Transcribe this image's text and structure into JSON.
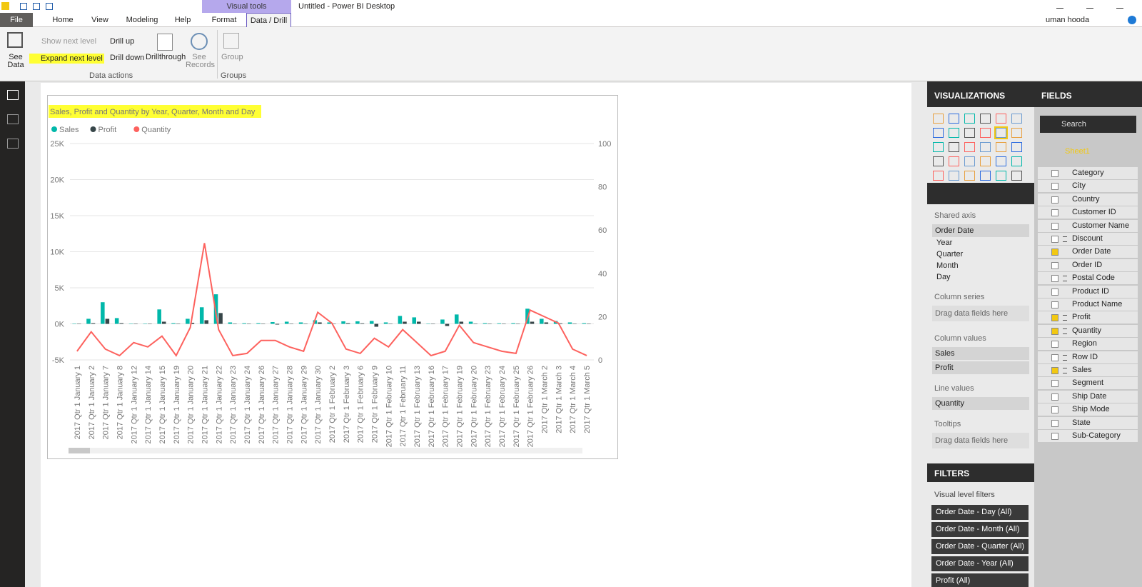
{
  "window": {
    "title": "Untitled - Power BI Desktop",
    "context_tab": "Visual tools",
    "user": "uman hooda"
  },
  "ribbon": {
    "tabs": [
      "File",
      "Home",
      "View",
      "Modeling",
      "Help",
      "Format",
      "Data / Drill"
    ],
    "active_tab": "Data / Drill",
    "see_data": [
      "See",
      "Data"
    ],
    "show_next_level": "Show next level",
    "expand_next_level": "Expand next level",
    "drill_up": "Drill up",
    "drill_down": "Drill down",
    "drillthrough": "Drillthrough",
    "see_records": [
      "See",
      "Records"
    ],
    "group": "Group",
    "group_labels": [
      "Data actions",
      "Groups"
    ]
  },
  "chart_data": {
    "type": "bar_line",
    "title": "Sales, Profit and Quantity by Year, Quarter, Month and Day",
    "categories": [
      "2017 Qtr 1 January 1",
      "2017 Qtr 1 January 2",
      "2017 Qtr 1 January 7",
      "2017 Qtr 1 January 8",
      "2017 Qtr 1 January 12",
      "2017 Qtr 1 January 14",
      "2017 Qtr 1 January 15",
      "2017 Qtr 1 January 19",
      "2017 Qtr 1 January 20",
      "2017 Qtr 1 January 21",
      "2017 Qtr 1 January 22",
      "2017 Qtr 1 January 23",
      "2017 Qtr 1 January 24",
      "2017 Qtr 1 January 26",
      "2017 Qtr 1 January 27",
      "2017 Qtr 1 January 28",
      "2017 Qtr 1 January 29",
      "2017 Qtr 1 January 30",
      "2017 Qtr 1 February 2",
      "2017 Qtr 1 February 3",
      "2017 Qtr 1 February 6",
      "2017 Qtr 1 February 9",
      "2017 Qtr 1 February 10",
      "2017 Qtr 1 February 11",
      "2017 Qtr 1 February 13",
      "2017 Qtr 1 February 16",
      "2017 Qtr 1 February 17",
      "2017 Qtr 1 February 19",
      "2017 Qtr 1 February 20",
      "2017 Qtr 1 February 23",
      "2017 Qtr 1 February 24",
      "2017 Qtr 1 February 25",
      "2017 Qtr 1 February 26",
      "2017 Qtr 1 March 2",
      "2017 Qtr 1 March 3",
      "2017 Qtr 1 March 4",
      "2017 Qtr 1 March 5"
    ],
    "series": [
      {
        "name": "Sales",
        "color": "#01b8aa",
        "values": [
          16,
          700,
          3000,
          800,
          50,
          20,
          2000,
          100,
          700,
          2300,
          4100,
          200,
          90,
          100,
          250,
          300,
          200,
          500,
          200,
          350,
          350,
          400,
          200,
          1100,
          900,
          50,
          600,
          1300,
          300,
          100,
          80,
          100,
          2100,
          700,
          400,
          200,
          100
        ]
      },
      {
        "name": "Profit",
        "color": "#374649",
        "values": [
          5,
          100,
          700,
          100,
          10,
          5,
          300,
          20,
          150,
          500,
          1500,
          30,
          20,
          20,
          -100,
          40,
          30,
          200,
          50,
          100,
          80,
          -400,
          50,
          300,
          300,
          10,
          -300,
          300,
          50,
          20,
          10,
          -50,
          300,
          200,
          80,
          50,
          20
        ]
      },
      {
        "name": "Quantity",
        "color": "#fd625e",
        "axis": "y2",
        "values": [
          4,
          13,
          5,
          2,
          8,
          6,
          11,
          2,
          15,
          54,
          14,
          2,
          3,
          9,
          9,
          6,
          4,
          22,
          17,
          5,
          3,
          10,
          6,
          14,
          8,
          2,
          4,
          16,
          8,
          6,
          4,
          3,
          23,
          20,
          17,
          5,
          2
        ]
      }
    ],
    "ylim": [
      -5000,
      25000
    ],
    "yticks": [
      {
        "value": -5000,
        "label": "-5K"
      },
      {
        "value": 0,
        "label": "0K"
      },
      {
        "value": 5000,
        "label": "5K"
      },
      {
        "value": 10000,
        "label": "10K"
      },
      {
        "value": 15000,
        "label": "15K"
      },
      {
        "value": 20000,
        "label": "20K"
      },
      {
        "value": 25000,
        "label": "25K"
      }
    ],
    "y2lim": [
      0,
      100
    ],
    "y2ticks": [
      0,
      20,
      40,
      60,
      80,
      100
    ],
    "grid": true
  },
  "visualizations": {
    "title": "VISUALIZATIONS",
    "sections": [
      {
        "label": "Shared axis",
        "fields": [
          "Order Date"
        ],
        "sub_fields": [
          "Year",
          "Quarter",
          "Month",
          "Day"
        ]
      },
      {
        "label": "Column series",
        "placeholder": "Drag data fields here"
      },
      {
        "label": "Column values",
        "fields": [
          "Sales",
          "Profit"
        ]
      },
      {
        "label": "Line values",
        "fields": [
          "Quantity"
        ]
      },
      {
        "label": "Tooltips",
        "placeholder": "Drag data fields here"
      }
    ]
  },
  "filters": {
    "title": "FILTERS",
    "subtitle": "Visual level filters",
    "items": [
      "Order Date - Day (All)",
      "Order Date - Month (All)",
      "Order Date - Quarter (All)",
      "Order Date - Year (All)",
      "Profit (All)"
    ]
  },
  "fields": {
    "title": "FIELDS",
    "search": "Search",
    "table": "Sheet1",
    "items": [
      {
        "name": "Category",
        "checked": false,
        "sum": false
      },
      {
        "name": "City",
        "checked": false,
        "sum": false
      },
      {
        "name": "Country",
        "checked": false,
        "sum": false
      },
      {
        "name": "Customer ID",
        "checked": false,
        "sum": false
      },
      {
        "name": "Customer Name",
        "checked": false,
        "sum": false
      },
      {
        "name": "Discount",
        "checked": false,
        "sum": true
      },
      {
        "name": "Order Date",
        "checked": true,
        "sum": false
      },
      {
        "name": "Order ID",
        "checked": false,
        "sum": false
      },
      {
        "name": "Postal Code",
        "checked": false,
        "sum": true
      },
      {
        "name": "Product ID",
        "checked": false,
        "sum": false
      },
      {
        "name": "Product Name",
        "checked": false,
        "sum": false
      },
      {
        "name": "Profit",
        "checked": true,
        "sum": true
      },
      {
        "name": "Quantity",
        "checked": true,
        "sum": true
      },
      {
        "name": "Region",
        "checked": false,
        "sum": false
      },
      {
        "name": "Row ID",
        "checked": false,
        "sum": true
      },
      {
        "name": "Sales",
        "checked": true,
        "sum": true
      },
      {
        "name": "Segment",
        "checked": false,
        "sum": false
      },
      {
        "name": "Ship Date",
        "checked": false,
        "sum": false
      },
      {
        "name": "Ship Mode",
        "checked": false,
        "sum": false
      },
      {
        "name": "State",
        "checked": false,
        "sum": false
      },
      {
        "name": "Sub-Category",
        "checked": false,
        "sum": false
      }
    ]
  }
}
